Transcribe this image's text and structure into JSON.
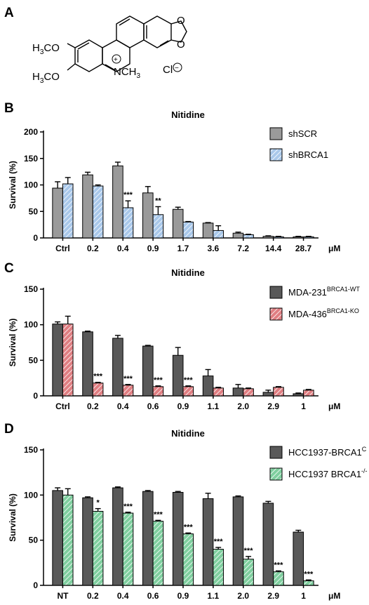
{
  "panels": {
    "a": "A",
    "b": "B",
    "c": "C",
    "d": "D"
  },
  "molecule": {
    "methoxy_top": "H3CO",
    "methoxy_bottom": "H3CO",
    "n_methyl": "NCH3",
    "plus": "+",
    "counter_ion": "Cl",
    "minus": "−"
  },
  "colors": {
    "gray_light": "#9a9a9a",
    "gray_dark": "#595959",
    "blue": "#a9c8ea",
    "red": "#e07e82",
    "green": "#7fcf9f"
  },
  "chart_data": [
    {
      "type": "bar",
      "title": "Nitidine",
      "ylabel": "Survival (%)",
      "xunit": "μM",
      "ylim": [
        0,
        200
      ],
      "yticks": [
        0,
        50,
        100,
        150,
        200
      ],
      "categories": [
        "Ctrl",
        "0.2",
        "0.4",
        "0.9",
        "1.7",
        "3.6",
        "7.2",
        "14.4",
        "28.7"
      ],
      "legend_position": "top-right",
      "series": [
        {
          "name": "shSCR",
          "values": [
            94,
            119,
            136,
            85,
            54,
            28,
            9,
            3,
            2
          ],
          "errors": [
            12,
            5,
            7,
            12,
            4,
            1,
            2,
            1,
            1
          ],
          "color_key": "gray_light",
          "hatched": false
        },
        {
          "name": "shBRCA1",
          "values": [
            102,
            98,
            57,
            44,
            30,
            14,
            6,
            2,
            2
          ],
          "errors": [
            12,
            2,
            13,
            15,
            1,
            9,
            1,
            1,
            1
          ],
          "color_key": "blue",
          "hatched": true
        }
      ],
      "significance": [
        {
          "category": "0.4",
          "text": "***"
        },
        {
          "category": "0.9",
          "text": "**"
        }
      ]
    },
    {
      "type": "bar",
      "title": "Nitidine",
      "ylabel": "Survival (%)",
      "xunit": "μM",
      "ylim": [
        0,
        150
      ],
      "yticks": [
        0,
        50,
        100,
        150
      ],
      "categories": [
        "Ctrl",
        "0.2",
        "0.4",
        "0.6",
        "0.9",
        "1.1",
        "2.0",
        "2.9",
        "1"
      ],
      "legend_position": "top-right",
      "series": [
        {
          "name": "MDA-231",
          "sup": "BRCA1-WT",
          "values": [
            101,
            90,
            81,
            70,
            57,
            28,
            11,
            5,
            3
          ],
          "errors": [
            3,
            1,
            4,
            1,
            11,
            9,
            5,
            3,
            1
          ],
          "color_key": "gray_dark",
          "hatched": false
        },
        {
          "name": "MDA-436",
          "sup": "BRCA1-KO",
          "values": [
            101,
            18,
            15,
            13,
            13,
            11,
            10,
            12,
            8
          ],
          "errors": [
            11,
            1,
            1,
            1,
            1,
            1,
            1,
            1,
            1
          ],
          "color_key": "red",
          "hatched": true
        }
      ],
      "significance": [
        {
          "category": "0.2",
          "text": "***"
        },
        {
          "category": "0.4",
          "text": "***"
        },
        {
          "category": "0.6",
          "text": "***"
        },
        {
          "category": "0.9",
          "text": "***"
        }
      ]
    },
    {
      "type": "bar",
      "title": "Nitidine",
      "ylabel": "Survival (%)",
      "xunit": "μM",
      "ylim": [
        0,
        150
      ],
      "yticks": [
        0,
        50,
        100,
        150
      ],
      "categories": [
        "NT",
        "0.2",
        "0.4",
        "0.6",
        "0.9",
        "1.1",
        "2.0",
        "2.9",
        "1"
      ],
      "legend_position": "top-right",
      "series": [
        {
          "name": "HCC1937-BRCA1",
          "sup": "C",
          "values": [
            105,
            97,
            108,
            104,
            103,
            96,
            98,
            91,
            59
          ],
          "errors": [
            3,
            1,
            1,
            1,
            1,
            6,
            1,
            2,
            2
          ],
          "color_key": "gray_dark",
          "hatched": false
        },
        {
          "name": "HCC1937 BRCA1",
          "sup": "-/-",
          "values": [
            100,
            82,
            80,
            71,
            57,
            40,
            29,
            15,
            5
          ],
          "errors": [
            7,
            3,
            1,
            1,
            1,
            2,
            3,
            1,
            1
          ],
          "color_key": "green",
          "hatched": true
        }
      ],
      "significance": [
        {
          "category": "0.2",
          "text": "*"
        },
        {
          "category": "0.4",
          "text": "***"
        },
        {
          "category": "0.6",
          "text": "***"
        },
        {
          "category": "0.9",
          "text": "***"
        },
        {
          "category": "1.1",
          "text": "***"
        },
        {
          "category": "2.0",
          "text": "***"
        },
        {
          "category": "2.9",
          "text": "***"
        },
        {
          "category": "1",
          "text": "***"
        }
      ]
    }
  ]
}
